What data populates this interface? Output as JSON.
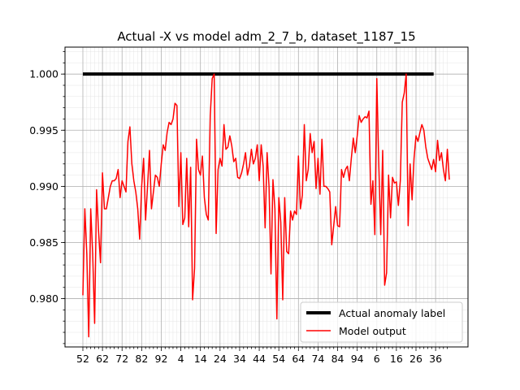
{
  "chart_data": {
    "type": "line",
    "title": "Actual -X vs model adm_2_7_b, dataset_1187_15",
    "xlabel": "",
    "ylabel": "",
    "ylim": [
      0.9757,
      1.0024
    ],
    "x_tick_labels": [
      "52",
      "62",
      "72",
      "82",
      "92",
      "4",
      "14",
      "24",
      "34",
      "44",
      "54",
      "64",
      "74",
      "84",
      "94",
      "6",
      "16",
      "26",
      "36"
    ],
    "y_ticks": [
      0.98,
      0.985,
      0.99,
      0.995,
      1.0
    ],
    "y_tick_labels": [
      "0.980",
      "0.985",
      "0.990",
      "0.995",
      "1.000"
    ],
    "grid": true,
    "legend_position": "lower-right",
    "series": [
      {
        "name": "Actual anomaly label",
        "color": "#000000",
        "values": [
          1,
          1,
          1,
          1,
          1,
          1,
          1,
          1,
          1,
          1,
          1,
          1,
          1,
          1,
          1,
          1,
          1,
          1,
          1,
          1,
          1,
          1,
          1,
          1,
          1,
          1,
          1,
          1,
          1,
          1,
          1,
          1,
          1,
          1,
          1,
          1,
          1,
          1,
          1,
          1,
          1,
          1,
          1,
          1,
          1,
          1,
          1,
          1,
          1,
          1,
          1,
          1,
          1,
          1,
          1,
          1,
          1,
          1,
          1,
          1,
          1,
          1,
          1,
          1,
          1,
          1,
          1,
          1,
          1,
          1,
          1,
          1,
          1,
          1,
          1,
          1,
          1,
          1,
          1,
          1,
          1,
          1,
          1,
          1,
          1,
          1,
          1,
          1,
          1,
          1,
          1,
          1,
          1,
          1,
          1,
          1,
          1,
          1,
          1,
          1,
          1,
          1,
          1,
          1,
          1,
          1,
          1,
          1,
          1,
          1,
          1,
          1,
          1,
          1,
          1,
          1,
          1,
          1,
          1,
          1,
          1,
          1,
          1,
          1,
          1,
          1,
          1,
          1,
          1,
          1,
          1,
          1,
          1,
          1,
          1,
          1,
          1,
          1,
          1,
          1,
          1,
          1,
          1,
          1,
          1,
          1,
          1,
          1,
          1,
          1,
          1,
          1,
          1,
          1,
          1,
          1,
          1,
          1,
          1,
          1,
          1,
          1,
          1,
          1,
          1,
          1,
          1,
          1,
          1,
          1,
          1,
          1,
          1,
          1,
          1,
          1,
          1,
          1,
          1,
          1
        ]
      },
      {
        "name": "Model output",
        "color": "#ff0000",
        "values": [
          0.9803,
          0.988,
          0.984,
          0.9766,
          0.988,
          0.984,
          0.9778,
          0.9897,
          0.986,
          0.9832,
          0.9912,
          0.988,
          0.988,
          0.989,
          0.99,
          0.9905,
          0.9905,
          0.9907,
          0.9915,
          0.989,
          0.9905,
          0.99,
          0.9895,
          0.994,
          0.9953,
          0.992,
          0.9905,
          0.9895,
          0.988,
          0.9853,
          0.99,
          0.9925,
          0.987,
          0.99,
          0.9932,
          0.988,
          0.9895,
          0.991,
          0.9908,
          0.99,
          0.992,
          0.9937,
          0.9932,
          0.9948,
          0.9957,
          0.9955,
          0.996,
          0.9974,
          0.9972,
          0.9882,
          0.993,
          0.9866,
          0.9872,
          0.9925,
          0.9864,
          0.9917,
          0.9799,
          0.9827,
          0.9942,
          0.9915,
          0.991,
          0.9927,
          0.989,
          0.9875,
          0.987,
          0.9963,
          0.9996,
          1.0,
          0.9858,
          0.9915,
          0.9925,
          0.9918,
          0.9955,
          0.9933,
          0.9935,
          0.9945,
          0.9936,
          0.9922,
          0.9925,
          0.9908,
          0.9907,
          0.9912,
          0.992,
          0.993,
          0.991,
          0.9918,
          0.9933,
          0.992,
          0.9925,
          0.9937,
          0.9905,
          0.9937,
          0.9918,
          0.9863,
          0.993,
          0.99,
          0.9822,
          0.9906,
          0.988,
          0.9782,
          0.989,
          0.9868,
          0.9799,
          0.989,
          0.9842,
          0.984,
          0.9878,
          0.987,
          0.9878,
          0.9875,
          0.9927,
          0.988,
          0.9892,
          0.9955,
          0.9905,
          0.9915,
          0.9947,
          0.993,
          0.994,
          0.9898,
          0.9925,
          0.9893,
          0.9942,
          0.99,
          0.99,
          0.9898,
          0.9895,
          0.9848,
          0.9865,
          0.9882,
          0.9865,
          0.9864,
          0.9915,
          0.9908,
          0.9915,
          0.9918,
          0.9905,
          0.9925,
          0.9943,
          0.993,
          0.9945,
          0.9963,
          0.9957,
          0.996,
          0.9962,
          0.9961,
          0.9967,
          0.9884,
          0.9905,
          0.9857,
          0.9996,
          0.992,
          0.9857,
          0.9932,
          0.9812,
          0.9823,
          0.991,
          0.9872,
          0.9908,
          0.9903,
          0.9904,
          0.9883,
          0.9905,
          0.9975,
          0.9983,
          1.0,
          0.9865,
          0.992,
          0.9888,
          0.9925,
          0.9945,
          0.994,
          0.9948,
          0.9955,
          0.995,
          0.9935,
          0.9925,
          0.992,
          0.9915,
          0.9924,
          0.9913,
          0.9941,
          0.9923,
          0.993,
          0.9915,
          0.9905,
          0.9933,
          0.9906
        ]
      }
    ]
  }
}
